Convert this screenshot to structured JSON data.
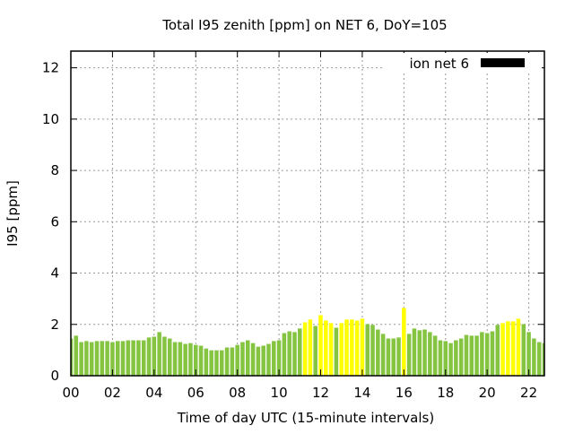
{
  "chart_data": {
    "type": "bar",
    "title": "Total I95 zenith [ppm] on NET 6, DoY=105",
    "xlabel": "Time of day UTC (15-minute intervals)",
    "ylabel": "I95 [ppm]",
    "xlim": [
      0,
      22.75
    ],
    "ylim": [
      0,
      12.65
    ],
    "grid": true,
    "legend": {
      "label": "ion net 6",
      "placement": "top-right"
    },
    "x_ticks": [
      "00",
      "02",
      "04",
      "06",
      "08",
      "10",
      "12",
      "14",
      "16",
      "18",
      "20",
      "22"
    ],
    "y_ticks": [
      "0",
      "2",
      "4",
      "6",
      "8",
      "10",
      "12"
    ],
    "colors": {
      "normal": "#84c441",
      "elevated": "#ffff00",
      "legend": "#000000"
    },
    "interval_hours": 0.25,
    "values": [
      1.45,
      1.56,
      1.31,
      1.35,
      1.31,
      1.35,
      1.35,
      1.35,
      1.31,
      1.35,
      1.35,
      1.38,
      1.38,
      1.38,
      1.38,
      1.49,
      1.52,
      1.7,
      1.52,
      1.45,
      1.31,
      1.31,
      1.24,
      1.27,
      1.2,
      1.17,
      1.06,
      0.99,
      0.99,
      0.99,
      1.1,
      1.1,
      1.2,
      1.31,
      1.38,
      1.27,
      1.13,
      1.17,
      1.24,
      1.35,
      1.38,
      1.66,
      1.73,
      1.7,
      1.84,
      2.08,
      2.19,
      1.94,
      2.36,
      2.15,
      2.05,
      1.87,
      2.05,
      2.19,
      2.19,
      2.15,
      2.22,
      2.01,
      1.98,
      1.8,
      1.63,
      1.45,
      1.45,
      1.49,
      2.64,
      1.63,
      1.84,
      1.77,
      1.8,
      1.7,
      1.56,
      1.38,
      1.35,
      1.27,
      1.38,
      1.45,
      1.59,
      1.56,
      1.56,
      1.7,
      1.66,
      1.73,
      1.98,
      2.05,
      2.12,
      2.12,
      2.22,
      2.01,
      1.7,
      1.45,
      1.31,
      1.27
    ],
    "highlighted": [
      45,
      46,
      48,
      49,
      50,
      52,
      53,
      54,
      55,
      56,
      64,
      83,
      84,
      85,
      86
    ]
  }
}
